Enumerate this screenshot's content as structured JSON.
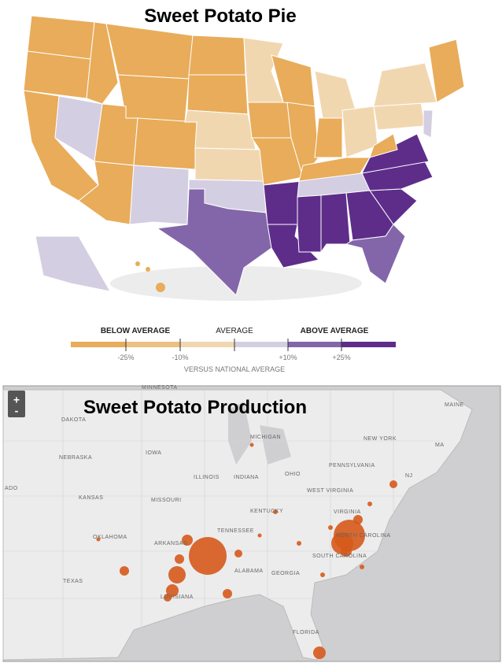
{
  "top": {
    "title": "Sweet Potato Pie",
    "legend": {
      "below": "BELOW AVERAGE",
      "average": "AVERAGE",
      "above": "ABOVE AVERAGE",
      "ticks": [
        "-25%",
        "-10%",
        "+10%",
        "+25%"
      ],
      "caption": "VERSUS NATIONAL AVERAGE"
    }
  },
  "bottom": {
    "title": "Sweet Potato Production",
    "zoom_in": "+",
    "zoom_out": "-",
    "state_labels": [
      "MINNESOTA",
      "DAKOTA",
      "NEBRASKA",
      "IOWA",
      "MICHIGAN",
      "NEW YORK",
      "MAINE",
      "ADO",
      "KANSAS",
      "MISSOURI",
      "ILLINOIS",
      "INDIANA",
      "OHIO",
      "PENNSYLVANIA",
      "WEST VIRGINIA",
      "VIRGINIA",
      "KENTUCKY",
      "TENNESSEE",
      "NORTH CAROLINA",
      "SOUTH CAROLINA",
      "OKLAHOMA",
      "ARKANSAS",
      "ALABAMA",
      "GEORGIA",
      "TEXAS",
      "LOUISIANA",
      "FLORIDA",
      "MA",
      "NJ"
    ]
  }
}
